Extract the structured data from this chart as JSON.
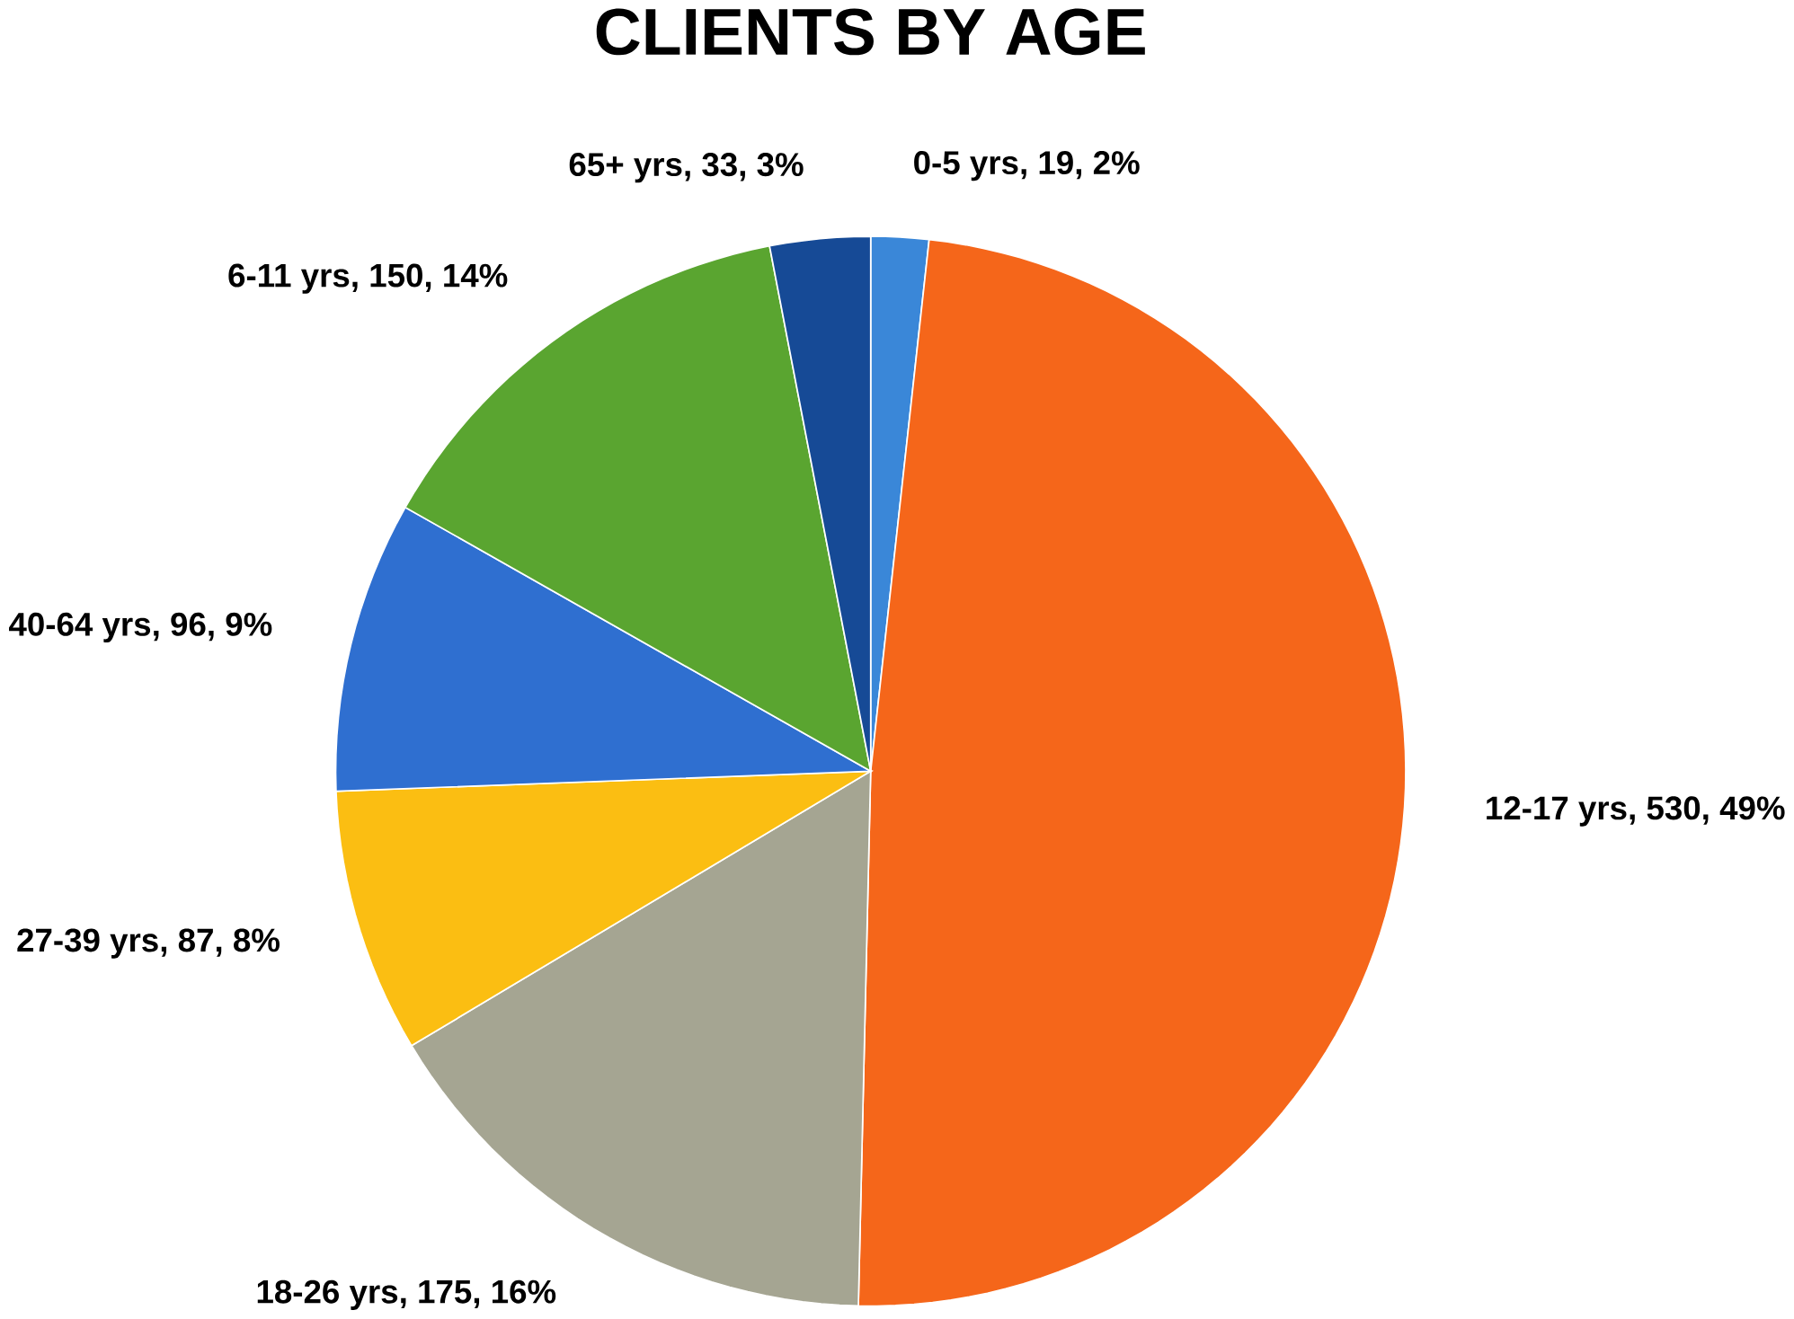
{
  "chart_data": {
    "type": "pie",
    "title": "CLIENTS BY AGE",
    "categories": [
      "0-5 yrs",
      "12-17 yrs",
      "18-26 yrs",
      "27-39 yrs",
      "40-64 yrs",
      "6-11 yrs",
      "65+ yrs"
    ],
    "values": [
      19,
      530,
      175,
      87,
      96,
      150,
      33
    ],
    "colors": [
      "#3a87d8",
      "#f5661a",
      "#a5a592",
      "#fbbe12",
      "#2f6fd0",
      "#5aa530",
      "#164a96"
    ],
    "value_labels": [
      ", 19, 2%",
      ", 530, 49%",
      ", 175, 16%",
      ", 87, 8%",
      ", 96, 9%",
      ", 150, 14%",
      ", 33, 3%"
    ]
  }
}
